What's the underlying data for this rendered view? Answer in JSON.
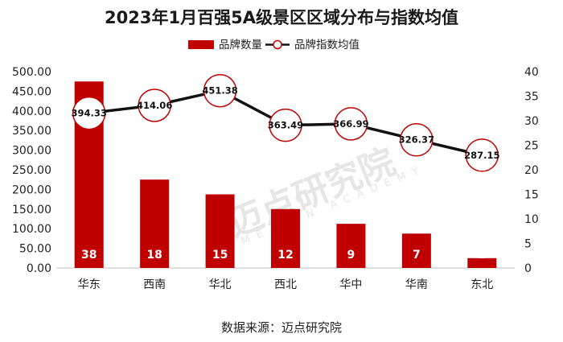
{
  "chart_data": {
    "type": "bar+line",
    "title": "2023年1月百强5A级景区区域分布与指数均值",
    "categories": [
      "华东",
      "西南",
      "华北",
      "西北",
      "华中",
      "华南",
      "东北"
    ],
    "series": [
      {
        "name": "品牌数量",
        "type": "bar",
        "axis": "right",
        "values": [
          38,
          18,
          15,
          12,
          9,
          7,
          2
        ],
        "color": "#c00000"
      },
      {
        "name": "品牌指数均值",
        "type": "line",
        "axis": "left",
        "values": [
          394.33,
          414.06,
          451.38,
          363.49,
          366.99,
          326.37,
          287.15
        ],
        "color": "#111111",
        "marker_color": "#c00000"
      }
    ],
    "y_left": {
      "min": 0,
      "max": 500,
      "step": 50,
      "tick_labels": [
        "0.00",
        "50.00",
        "100.00",
        "150.00",
        "200.00",
        "250.00",
        "300.00",
        "350.00",
        "400.00",
        "450.00",
        "500.00"
      ]
    },
    "y_right": {
      "min": 0,
      "max": 40,
      "step": 5,
      "tick_labels": [
        "0",
        "5",
        "10",
        "15",
        "20",
        "25",
        "30",
        "35",
        "40"
      ]
    },
    "legend_position": "top-center",
    "grid": false
  },
  "watermark": {
    "main": "迈点研究院",
    "sub": "MEADIN ACADEMY"
  },
  "source": "数据来源：迈点研究院"
}
